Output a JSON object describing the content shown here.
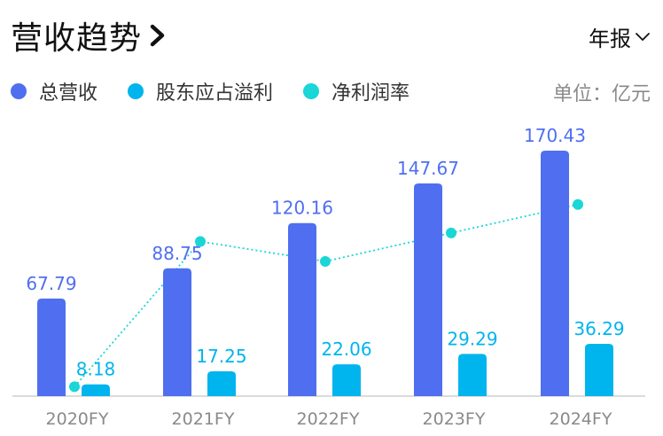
{
  "header": {
    "title": "营收趋势",
    "period_label": "年报"
  },
  "legend_unit": "单位：亿元",
  "colors": {
    "revenue": "#4f6ff0",
    "profit": "#00b4ee",
    "margin": "#1ad6d6",
    "axis_text": "#8a8a8a"
  },
  "icons": {
    "title_chevron": "chevron-right-icon",
    "period_arrow": "chevron-down-icon"
  },
  "chart_data": {
    "type": "bar",
    "categories": [
      "2020FY",
      "2021FY",
      "2022FY",
      "2023FY",
      "2024FY"
    ],
    "series": [
      {
        "name": "总营收",
        "type": "bar",
        "color": "#4f6ff0",
        "values": [
          67.79,
          88.75,
          120.16,
          147.67,
          170.43
        ]
      },
      {
        "name": "股东应占溢利",
        "type": "bar",
        "color": "#00b4ee",
        "values": [
          8.18,
          17.25,
          22.06,
          29.29,
          36.29
        ]
      },
      {
        "name": "净利润率",
        "type": "line",
        "style": "dotted",
        "color": "#1ad6d6",
        "values": [
          3,
          54,
          47,
          57,
          67
        ]
      }
    ],
    "ylim": [
      0,
      170.43
    ],
    "xlabel": "",
    "ylabel": "",
    "legend": "top-left",
    "grid": false
  }
}
